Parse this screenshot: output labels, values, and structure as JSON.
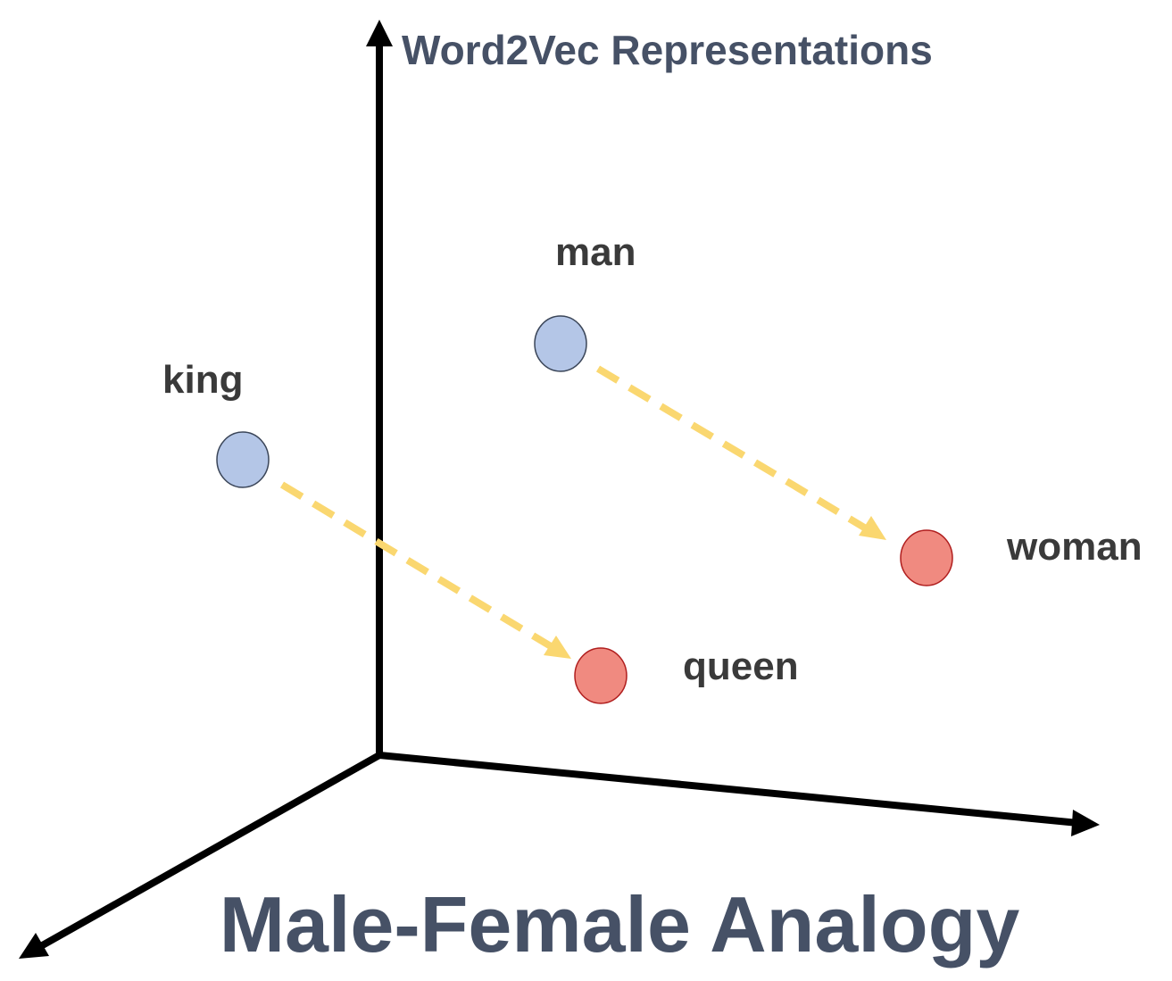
{
  "diagram": {
    "title": "Word2Vec Representations",
    "caption": "Male-Female Analogy"
  },
  "words": [
    {
      "id": "man",
      "label": "man",
      "group": "male"
    },
    {
      "id": "king",
      "label": "king",
      "group": "male"
    },
    {
      "id": "woman",
      "label": "woman",
      "group": "female"
    },
    {
      "id": "queen",
      "label": "queen",
      "group": "female"
    }
  ],
  "analogies": [
    {
      "from": "man",
      "to": "woman"
    },
    {
      "from": "king",
      "to": "queen"
    }
  ],
  "colors": {
    "male_fill": "#b4c6e7",
    "female_fill": "#f08a80",
    "analogy_arrow": "#fad770",
    "axis": "#000000",
    "title": "#465166",
    "labels": "#3a3a3a"
  }
}
